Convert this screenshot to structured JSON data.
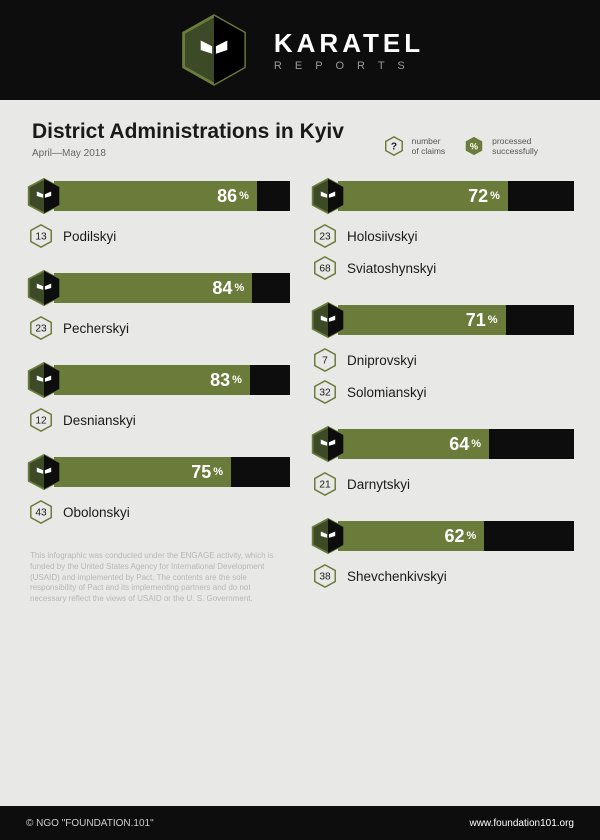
{
  "brand": {
    "title": "KARATEL",
    "subtitle": "R E P O R T S"
  },
  "page": {
    "title": "District Administrations in Kyiv",
    "date": "April—May 2018"
  },
  "legend": {
    "claims": {
      "symbol": "?",
      "text1": "number",
      "text2": "of claims"
    },
    "success": {
      "symbol": "%",
      "text1": "processed",
      "text2": "successfully"
    }
  },
  "style": {
    "bar_fill": "#6b7b3a",
    "bar_track": "#0d0d0d",
    "hex_stroke": "#6b7b3a",
    "hex_fill_logo": "#3d4a28",
    "background": "#e8e8e6",
    "text_dark": "#1a1a1a",
    "value_font_size": 18,
    "label_font_size": 13.5
  },
  "left_col": [
    {
      "pct": 86,
      "items": [
        {
          "claims": 13,
          "name": "Podilskyi"
        }
      ]
    },
    {
      "pct": 84,
      "items": [
        {
          "claims": 23,
          "name": "Pecherskyi"
        }
      ]
    },
    {
      "pct": 83,
      "items": [
        {
          "claims": 12,
          "name": "Desnianskyi"
        }
      ]
    },
    {
      "pct": 75,
      "items": [
        {
          "claims": 43,
          "name": "Obolonskyi"
        }
      ]
    }
  ],
  "right_col": [
    {
      "pct": 72,
      "items": [
        {
          "claims": 23,
          "name": "Holosiivskyi"
        },
        {
          "claims": 68,
          "name": "Sviatoshynskyi"
        }
      ]
    },
    {
      "pct": 71,
      "items": [
        {
          "claims": 7,
          "name": "Dniprovskyi"
        },
        {
          "claims": 32,
          "name": "Solomianskyi"
        }
      ]
    },
    {
      "pct": 64,
      "items": [
        {
          "claims": 21,
          "name": "Darnytskyi"
        }
      ]
    },
    {
      "pct": 62,
      "items": [
        {
          "claims": 38,
          "name": "Shevchenkivskyi"
        }
      ]
    }
  ],
  "disclaimer": "This infographic was conducted under the ENGAGE activity, which is funded by the United States Agency for International Development (USAID) and implemented by Pact. The contents are the sole responsibility of Pact and its implementing partners and do not necessary reflect the views of USAID or the U. S. Government.",
  "footer": {
    "left": "© NGO \"FOUNDATION.101\"",
    "right": "www.foundation101.org"
  }
}
